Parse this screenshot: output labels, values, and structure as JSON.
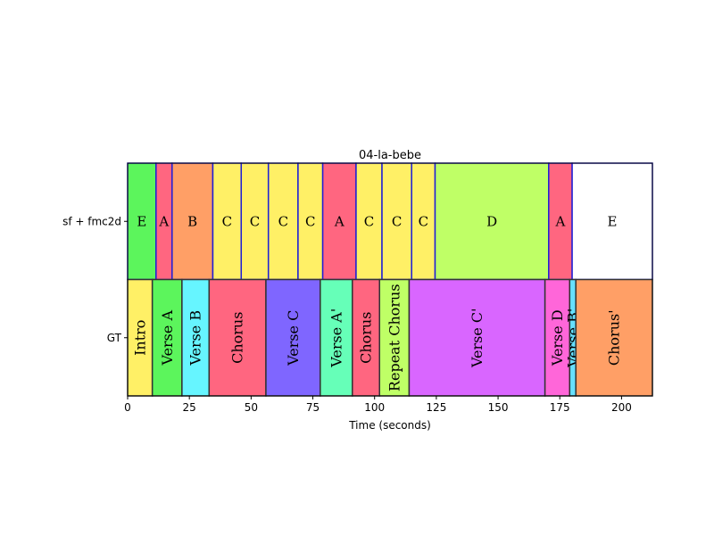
{
  "chart_data": {
    "type": "segment-timeline",
    "title": "04-la-bebe",
    "xlabel": "Time (seconds)",
    "xlim": [
      0,
      212.5
    ],
    "xticks": [
      0,
      25,
      50,
      75,
      100,
      125,
      150,
      175,
      200
    ],
    "rows": [
      {
        "name": "sf + fmc2d",
        "edgecolor": "#1f1fd6",
        "segments": [
          {
            "start": 0,
            "end": 11.5,
            "label": "E",
            "color": "#5cf55c"
          },
          {
            "start": 11.5,
            "end": 18,
            "label": "A",
            "color": "#ff6680"
          },
          {
            "start": 18,
            "end": 34.5,
            "label": "B",
            "color": "#ff9f66"
          },
          {
            "start": 34.5,
            "end": 46,
            "label": "C",
            "color": "#fff066"
          },
          {
            "start": 46,
            "end": 57,
            "label": "C",
            "color": "#fff066"
          },
          {
            "start": 57,
            "end": 69,
            "label": "C",
            "color": "#fff066"
          },
          {
            "start": 69,
            "end": 79,
            "label": "C",
            "color": "#fff066"
          },
          {
            "start": 79,
            "end": 92.5,
            "label": "A",
            "color": "#ff6680"
          },
          {
            "start": 92.5,
            "end": 103,
            "label": "C",
            "color": "#fff066"
          },
          {
            "start": 103,
            "end": 115,
            "label": "C",
            "color": "#fff066"
          },
          {
            "start": 115,
            "end": 124.5,
            "label": "C",
            "color": "#fff066"
          },
          {
            "start": 124.5,
            "end": 170.5,
            "label": "D",
            "color": "#bfff66"
          },
          {
            "start": 170.5,
            "end": 180,
            "label": "A",
            "color": "#ff6680"
          },
          {
            "start": 180,
            "end": 212.5,
            "label": "E",
            "color": "#ffffff"
          }
        ]
      },
      {
        "name": "GT",
        "edgecolor": "#333333",
        "segments": [
          {
            "start": 0,
            "end": 10,
            "label": "Intro",
            "color": "#fff066"
          },
          {
            "start": 10,
            "end": 22,
            "label": "Verse A",
            "color": "#5cf55c"
          },
          {
            "start": 22,
            "end": 33,
            "label": "Verse B",
            "color": "#66f5ff"
          },
          {
            "start": 33,
            "end": 56,
            "label": "Chorus",
            "color": "#ff6680"
          },
          {
            "start": 56,
            "end": 78,
            "label": "Verse C",
            "color": "#7f66ff"
          },
          {
            "start": 78,
            "end": 91,
            "label": "Verse A'",
            "color": "#66ffb8"
          },
          {
            "start": 91,
            "end": 102,
            "label": "Chorus",
            "color": "#ff6680"
          },
          {
            "start": 102,
            "end": 114,
            "label": "Repeat Chorus",
            "color": "#bfff66"
          },
          {
            "start": 114,
            "end": 169,
            "label": "Verse C'",
            "color": "#d966ff"
          },
          {
            "start": 169,
            "end": 179,
            "label": "Verse D",
            "color": "#ff66d9"
          },
          {
            "start": 179,
            "end": 181.5,
            "label": "Verse B'",
            "color": "#66e0ff"
          },
          {
            "start": 181.5,
            "end": 212.5,
            "label": "Chorus'",
            "color": "#ff9f66"
          }
        ]
      }
    ]
  }
}
